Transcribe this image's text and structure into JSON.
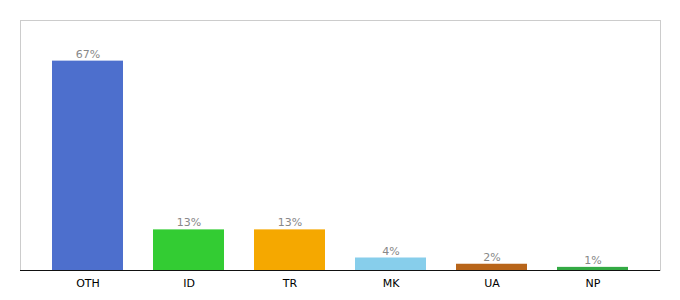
{
  "chart_data": {
    "type": "bar",
    "categories": [
      "OTH",
      "ID",
      "TR",
      "MK",
      "UA",
      "NP"
    ],
    "values": [
      67,
      13,
      13,
      4,
      2,
      1
    ],
    "value_labels": [
      "67%",
      "13%",
      "13%",
      "4%",
      "2%",
      "1%"
    ],
    "colors": [
      "#4d6fcd",
      "#33cc33",
      "#f5a800",
      "#87ceeb",
      "#b8651a",
      "#33aa44"
    ],
    "ylim": [
      0,
      80
    ],
    "data_labels": true,
    "grid": false,
    "tick_labels": "x"
  }
}
